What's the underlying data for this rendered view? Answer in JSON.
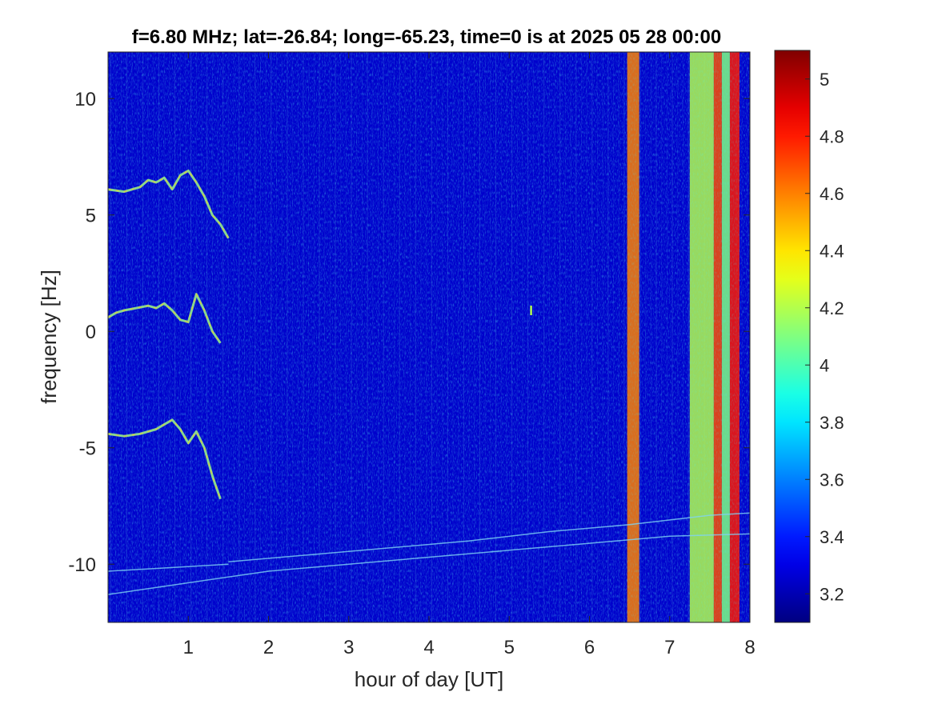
{
  "chart_data": {
    "type": "heatmap",
    "title": "f=6.80 MHz;  lat=-26.84; long=-65.23, time=0 is at 2025 05 28 00:00",
    "xlabel": "hour of day [UT]",
    "ylabel": "frequency [Hz]",
    "xlim": [
      0,
      8
    ],
    "ylim": [
      -12.5,
      12
    ],
    "x_ticks": [
      1,
      2,
      3,
      4,
      5,
      6,
      7,
      8
    ],
    "x_tick_labels": [
      "1",
      "2",
      "3",
      "4",
      "5",
      "6",
      "7",
      "8"
    ],
    "y_ticks": [
      10,
      5,
      0,
      -5,
      -10
    ],
    "y_tick_labels": [
      "10",
      "5",
      "0",
      "-5",
      "-10"
    ],
    "colorbar": {
      "colormap": "jet",
      "range": [
        3.1,
        5.1
      ],
      "ticks": [
        5,
        4.8,
        4.6,
        4.4,
        4.2,
        4,
        3.8,
        3.6,
        3.4,
        3.2
      ],
      "tick_labels": [
        "5",
        "4.8",
        "4.6",
        "4.4",
        "4.2",
        "4",
        "3.8",
        "3.6",
        "3.4",
        "3.2"
      ]
    },
    "background_level": 3.25,
    "traces": [
      {
        "name": "",
        "points": [
          [
            0,
            6.1
          ],
          [
            0.2,
            6.0
          ],
          [
            0.4,
            6.2
          ],
          [
            0.5,
            6.5
          ],
          [
            0.6,
            6.4
          ],
          [
            0.7,
            6.6
          ],
          [
            0.8,
            6.1
          ],
          [
            0.9,
            6.7
          ],
          [
            1.0,
            6.9
          ],
          [
            1.1,
            6.4
          ],
          [
            1.2,
            5.8
          ],
          [
            1.3,
            5.0
          ],
          [
            1.4,
            4.6
          ],
          [
            1.5,
            4.0
          ]
        ]
      },
      {
        "name": "",
        "points": [
          [
            0,
            0.6
          ],
          [
            0.1,
            0.8
          ],
          [
            0.2,
            0.9
          ],
          [
            0.35,
            1.0
          ],
          [
            0.5,
            1.1
          ],
          [
            0.6,
            1.0
          ],
          [
            0.7,
            1.2
          ],
          [
            0.8,
            0.9
          ],
          [
            0.9,
            0.5
          ],
          [
            1.0,
            0.4
          ],
          [
            1.1,
            1.6
          ],
          [
            1.2,
            0.9
          ],
          [
            1.3,
            0.0
          ],
          [
            1.4,
            -0.5
          ]
        ]
      },
      {
        "name": "",
        "points": [
          [
            0,
            -4.4
          ],
          [
            0.2,
            -4.5
          ],
          [
            0.4,
            -4.4
          ],
          [
            0.6,
            -4.2
          ],
          [
            0.7,
            -4.0
          ],
          [
            0.8,
            -3.8
          ],
          [
            0.9,
            -4.2
          ],
          [
            1.0,
            -4.8
          ],
          [
            1.1,
            -4.3
          ],
          [
            1.2,
            -5.0
          ],
          [
            1.3,
            -6.2
          ],
          [
            1.35,
            -6.7
          ],
          [
            1.4,
            -7.2
          ]
        ]
      },
      {
        "name": "",
        "points": [
          [
            0,
            -11.3
          ],
          [
            1.0,
            -10.8
          ],
          [
            2.0,
            -10.3
          ],
          [
            3.0,
            -10.0
          ],
          [
            4.0,
            -9.7
          ],
          [
            5.0,
            -9.4
          ],
          [
            6.0,
            -9.1
          ],
          [
            7.0,
            -8.8
          ],
          [
            8.0,
            -8.7
          ]
        ]
      },
      {
        "name": "",
        "points": [
          [
            1.5,
            -9.9
          ],
          [
            2.5,
            -9.6
          ],
          [
            3.5,
            -9.3
          ],
          [
            4.5,
            -9.0
          ],
          [
            5.5,
            -8.6
          ],
          [
            6.5,
            -8.3
          ],
          [
            7.5,
            -7.9
          ],
          [
            8.0,
            -7.8
          ]
        ]
      },
      {
        "name": "",
        "points": [
          [
            0,
            -10.3
          ],
          [
            0.5,
            -10.2
          ],
          [
            1.0,
            -10.1
          ],
          [
            1.5,
            -10.0
          ]
        ]
      }
    ],
    "bands": [
      {
        "x_start": 6.47,
        "x_end": 6.62,
        "level": 4.6
      },
      {
        "x_start": 7.25,
        "x_end": 7.55,
        "level": 4.2
      },
      {
        "x_start": 7.55,
        "x_end": 7.65,
        "level": 4.7
      },
      {
        "x_start": 7.65,
        "x_end": 7.75,
        "level": 4.1
      },
      {
        "x_start": 7.75,
        "x_end": 7.87,
        "level": 4.8
      }
    ],
    "spikes": [
      {
        "x": 5.27,
        "y": 0.9,
        "level": 4.2
      }
    ],
    "grid": false
  }
}
